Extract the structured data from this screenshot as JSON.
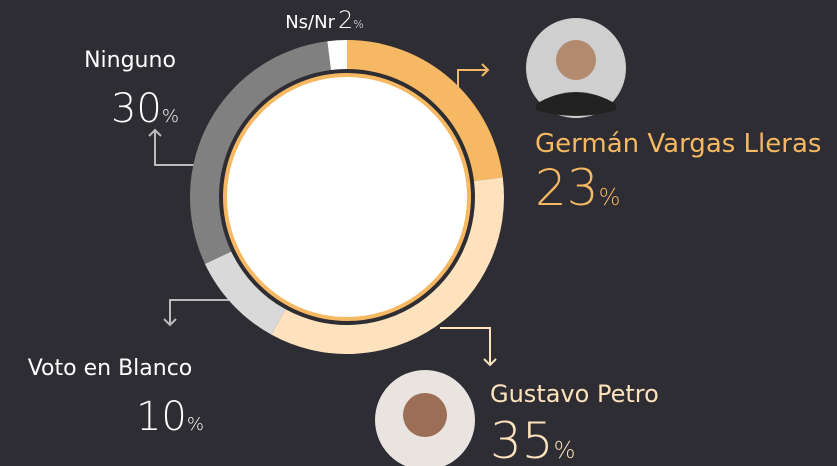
{
  "chart_data": {
    "type": "donut",
    "categories": [
      "Germán Vargas Lleras",
      "Gustavo Petro",
      "Voto en Blanco",
      "Ninguno",
      "Ns/Nr"
    ],
    "values": [
      23,
      35,
      10,
      30,
      2
    ],
    "value_labels": [
      "23%",
      "35%",
      "10%",
      "30%",
      "2%"
    ],
    "colors": [
      "#f6b862",
      "#fde2bd",
      "#d9d9d9",
      "#808080",
      "#ffffff"
    ],
    "label_colors": [
      "#f6b862",
      "#fde2bd",
      "#ffffff",
      "#ffffff",
      "#ffffff"
    ]
  }
}
